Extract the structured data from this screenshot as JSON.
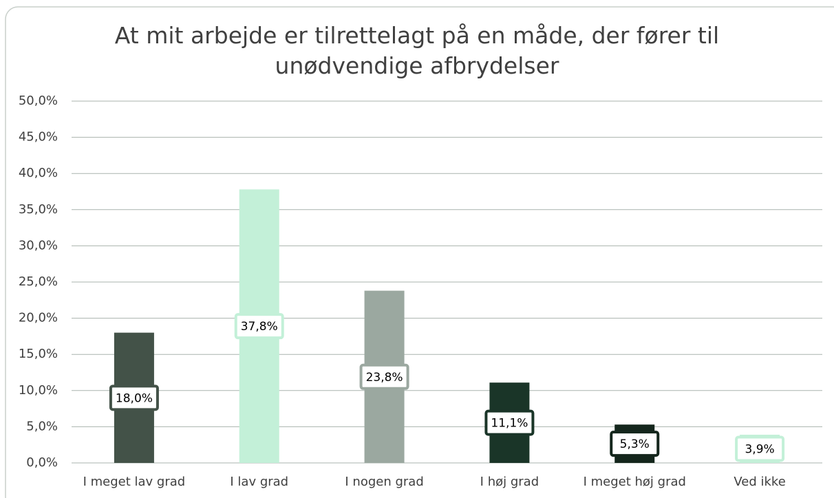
{
  "chart_data": {
    "type": "bar",
    "title": "At mit arbejde er tilrettelagt på en måde, der fører til unødvendige afbrydelser",
    "categories": [
      "I meget lav grad",
      "I lav grad",
      "I nogen grad",
      "I høj grad",
      "I meget høj grad",
      "Ved ikke"
    ],
    "values": [
      18.0,
      37.8,
      23.8,
      11.1,
      5.3,
      3.9
    ],
    "value_labels": [
      "18,0%",
      "37,8%",
      "23,8%",
      "11,1%",
      "5,3%",
      "3,9%"
    ],
    "colors": [
      "#435248",
      "#c3f0d8",
      "#9ba8a0",
      "#1a3528",
      "#14261c",
      "#c3f0d8"
    ],
    "ylim": [
      0,
      50
    ],
    "yticks": [
      {
        "value": 0,
        "label": "0,0%"
      },
      {
        "value": 5,
        "label": "5,0%"
      },
      {
        "value": 10,
        "label": "10,0%"
      },
      {
        "value": 15,
        "label": "15,0%"
      },
      {
        "value": 20,
        "label": "20,0%"
      },
      {
        "value": 25,
        "label": "25,0%"
      },
      {
        "value": 30,
        "label": "30,0%"
      },
      {
        "value": 35,
        "label": "35,0%"
      },
      {
        "value": 40,
        "label": "40,0%"
      },
      {
        "value": 45,
        "label": "45,0%"
      },
      {
        "value": 50,
        "label": "50,0%"
      }
    ],
    "grid": true
  }
}
